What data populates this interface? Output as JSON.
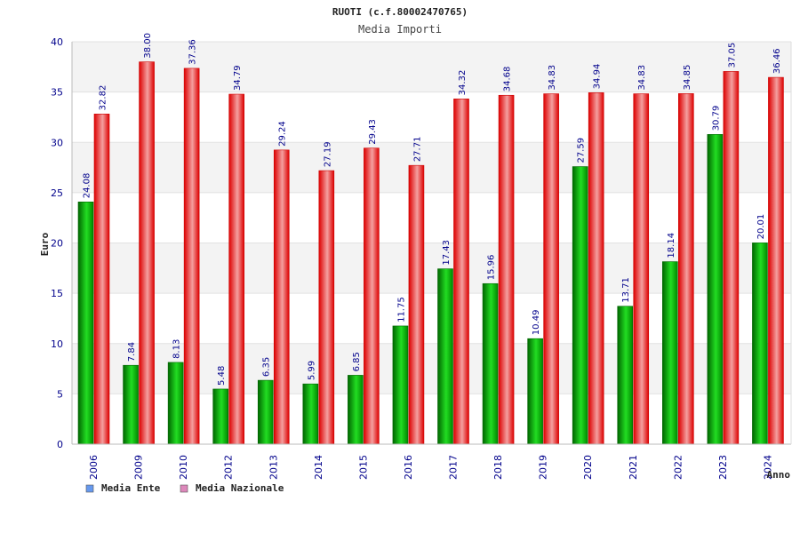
{
  "chart_data": {
    "type": "bar",
    "title": "RUOTI (c.f.80002470765)",
    "subtitle": "Media Importi",
    "xlabel": "Anno",
    "ylabel": "Euro",
    "ylim": [
      0,
      40
    ],
    "yticks": [
      "0",
      "5",
      "10",
      "15",
      "20",
      "25",
      "30",
      "35",
      "40"
    ],
    "categories": [
      "2006",
      "2009",
      "2010",
      "2012",
      "2013",
      "2014",
      "2015",
      "2016",
      "2017",
      "2018",
      "2019",
      "2020",
      "2021",
      "2022",
      "2023",
      "2024"
    ],
    "series": [
      {
        "name": "Media Ente",
        "color": "#00aa00",
        "legend_color": "#6699ee",
        "values": [
          24.08,
          7.84,
          8.13,
          5.48,
          6.35,
          5.99,
          6.85,
          11.75,
          17.43,
          15.96,
          10.49,
          27.59,
          13.71,
          18.14,
          30.79,
          20.01
        ],
        "labels": [
          "24.08",
          "7.84",
          "8.13",
          "5.48",
          "6.35",
          "5.99",
          "6.85",
          "11.75",
          "17.43",
          "15.96",
          "10.49",
          "27.59",
          "13.71",
          "18.14",
          "30.79",
          "20.01"
        ]
      },
      {
        "name": "Media Nazionale",
        "color": "#ee1111",
        "legend_color": "#dd88bb",
        "values": [
          32.82,
          38.0,
          37.36,
          34.79,
          29.24,
          27.19,
          29.43,
          27.71,
          34.32,
          34.68,
          34.83,
          34.94,
          34.83,
          34.85,
          37.05,
          36.46
        ],
        "labels": [
          "32.82",
          "38.00",
          "37.36",
          "34.79",
          "29.24",
          "27.19",
          "29.43",
          "27.71",
          "34.32",
          "34.68",
          "34.83",
          "34.94",
          "34.83",
          "34.85",
          "37.05",
          "36.46"
        ]
      }
    ],
    "grid": true,
    "legend": "bottom-left"
  }
}
